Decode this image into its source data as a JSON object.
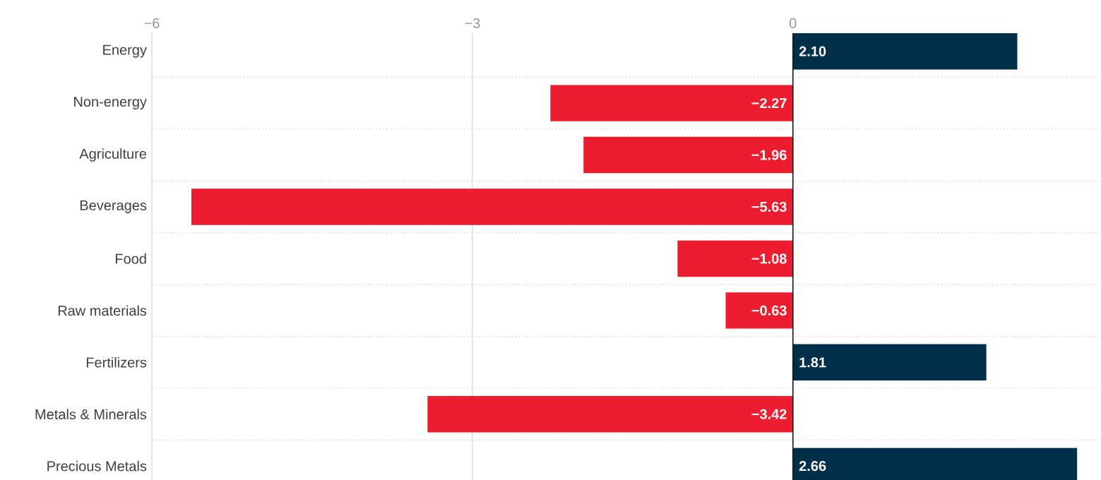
{
  "chart_data": {
    "type": "bar",
    "orientation": "horizontal",
    "categories": [
      "Energy",
      "Non-energy",
      "Agriculture",
      "Beverages",
      "Food",
      "Raw materials",
      "Fertilizers",
      "Metals & Minerals",
      "Precious Metals"
    ],
    "values": [
      2.1,
      -2.27,
      -1.96,
      -5.63,
      -1.08,
      -0.63,
      1.81,
      -3.42,
      2.66
    ],
    "colors": [
      "#003049",
      "#ed1c2e",
      "#ed1c2e",
      "#ed1c2e",
      "#ed1c2e",
      "#ed1c2e",
      "#003049",
      "#ed1c2e",
      "#003049"
    ],
    "value_labels": [
      "2.10",
      "−2.27",
      "−1.96",
      "−5.63",
      "−1.08",
      "−0.63",
      "1.81",
      "−3.42",
      "2.66"
    ],
    "xlim": [
      -6,
      2.87
    ],
    "xticks": [
      {
        "value": -6,
        "label": "−6"
      },
      {
        "value": -3,
        "label": "−3"
      },
      0
    ],
    "ref_lines": [
      {
        "axis": "x",
        "value": 0,
        "color": "#1a1a1a"
      }
    ],
    "grid": "x"
  }
}
